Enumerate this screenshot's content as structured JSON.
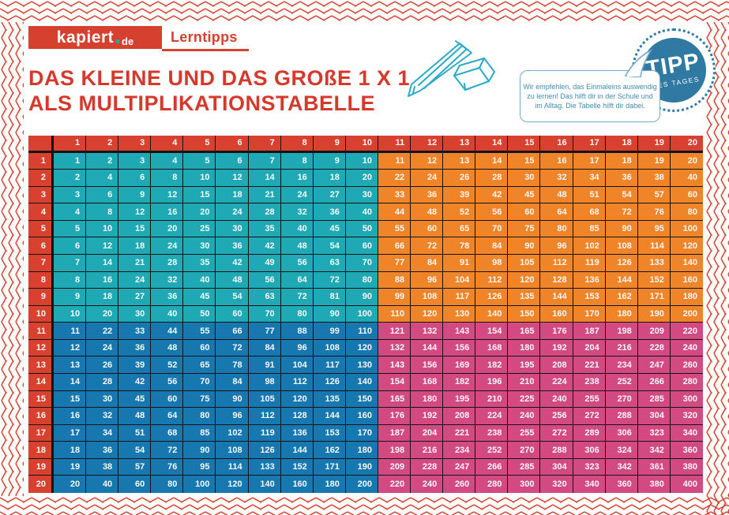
{
  "brand": {
    "name": "kapiert",
    "dot": "●",
    "tld": "de",
    "section": "Lerntipps"
  },
  "title": {
    "line1": "DAS KLEINE UND DAS GROßE 1 X 1",
    "line2": "ALS MULTIPLIKATIONSTABELLE"
  },
  "badge": {
    "title": "TIPP",
    "subtitle": "DES TAGES"
  },
  "bubble": {
    "line1": "Wir empfehlen, das Einmaleins auswendig",
    "line2": "zu lernen! Das hilft dir in der Schule und",
    "line3": "im Alltag. Die Tabelle hilft dir dabei."
  },
  "icons": {
    "pencil": "pencil-icon",
    "eraser": "eraser-icon",
    "border": "zigzag-border"
  },
  "colors": {
    "brand_red": "#d6402f",
    "header_red": "#d8402f",
    "quad_small": "#1fa9b5",
    "quad_cols_large": "#f08428",
    "quad_rows_large": "#1778b0",
    "quad_large": "#d34a82",
    "badge_blue": "#2f79a3",
    "doodle_teal": "#2baac6",
    "bubble_blue": "#3f8cb0",
    "cell_text": "#ffffff",
    "grid_line": "#141414"
  },
  "chart_data": {
    "type": "table",
    "title": "DAS KLEINE UND DAS GROßE 1 X 1 ALS MULTIPLIKATIONSTABELLE",
    "col_headers": [
      1,
      2,
      3,
      4,
      5,
      6,
      7,
      8,
      9,
      10,
      11,
      12,
      13,
      14,
      15,
      16,
      17,
      18,
      19,
      20
    ],
    "row_headers": [
      1,
      2,
      3,
      4,
      5,
      6,
      7,
      8,
      9,
      10,
      11,
      12,
      13,
      14,
      15,
      16,
      17,
      18,
      19,
      20
    ],
    "rows": [
      [
        1,
        2,
        3,
        4,
        5,
        6,
        7,
        8,
        9,
        10,
        11,
        12,
        13,
        14,
        15,
        16,
        17,
        18,
        19,
        20
      ],
      [
        2,
        4,
        6,
        8,
        10,
        12,
        14,
        16,
        18,
        20,
        22,
        24,
        26,
        28,
        30,
        32,
        34,
        36,
        38,
        40
      ],
      [
        3,
        6,
        9,
        12,
        15,
        18,
        21,
        24,
        27,
        30,
        33,
        36,
        39,
        42,
        45,
        48,
        51,
        54,
        57,
        60
      ],
      [
        4,
        8,
        12,
        16,
        20,
        24,
        28,
        32,
        36,
        40,
        44,
        48,
        52,
        56,
        60,
        64,
        68,
        72,
        76,
        80
      ],
      [
        5,
        10,
        15,
        20,
        25,
        30,
        35,
        40,
        45,
        50,
        55,
        60,
        65,
        70,
        75,
        80,
        85,
        90,
        95,
        100
      ],
      [
        6,
        12,
        18,
        24,
        30,
        36,
        42,
        48,
        54,
        60,
        66,
        72,
        78,
        84,
        90,
        96,
        102,
        108,
        114,
        120
      ],
      [
        7,
        14,
        21,
        28,
        35,
        42,
        49,
        56,
        63,
        70,
        77,
        84,
        91,
        98,
        105,
        112,
        119,
        126,
        133,
        140
      ],
      [
        8,
        16,
        24,
        32,
        40,
        48,
        56,
        64,
        72,
        80,
        88,
        96,
        104,
        112,
        120,
        128,
        136,
        144,
        152,
        160
      ],
      [
        9,
        18,
        27,
        36,
        45,
        54,
        63,
        72,
        81,
        90,
        99,
        108,
        117,
        126,
        135,
        144,
        153,
        162,
        171,
        180
      ],
      [
        10,
        20,
        30,
        40,
        50,
        60,
        70,
        80,
        90,
        100,
        110,
        120,
        130,
        140,
        150,
        160,
        170,
        180,
        190,
        200
      ],
      [
        11,
        22,
        33,
        44,
        55,
        66,
        77,
        88,
        99,
        110,
        121,
        132,
        143,
        154,
        165,
        176,
        187,
        198,
        209,
        220
      ],
      [
        12,
        24,
        36,
        48,
        60,
        72,
        84,
        96,
        108,
        120,
        132,
        144,
        156,
        168,
        180,
        192,
        204,
        216,
        228,
        240
      ],
      [
        13,
        26,
        39,
        52,
        65,
        78,
        91,
        104,
        117,
        130,
        143,
        156,
        169,
        182,
        195,
        208,
        221,
        234,
        247,
        260
      ],
      [
        14,
        28,
        42,
        56,
        70,
        84,
        98,
        112,
        126,
        140,
        154,
        168,
        182,
        196,
        210,
        224,
        238,
        252,
        266,
        280
      ],
      [
        15,
        30,
        45,
        60,
        75,
        90,
        105,
        120,
        135,
        150,
        165,
        180,
        195,
        210,
        225,
        240,
        255,
        270,
        285,
        300
      ],
      [
        16,
        32,
        48,
        64,
        80,
        96,
        112,
        128,
        144,
        160,
        176,
        192,
        208,
        224,
        240,
        256,
        272,
        288,
        304,
        320
      ],
      [
        17,
        34,
        51,
        68,
        85,
        102,
        119,
        136,
        153,
        170,
        187,
        204,
        221,
        238,
        255,
        272,
        289,
        306,
        323,
        340
      ],
      [
        18,
        36,
        54,
        72,
        90,
        108,
        126,
        144,
        162,
        180,
        198,
        216,
        234,
        252,
        270,
        288,
        306,
        324,
        342,
        360
      ],
      [
        19,
        38,
        57,
        76,
        95,
        114,
        133,
        152,
        171,
        190,
        209,
        228,
        247,
        266,
        285,
        304,
        323,
        342,
        361,
        380
      ],
      [
        20,
        40,
        60,
        80,
        100,
        120,
        140,
        160,
        180,
        200,
        220,
        240,
        260,
        280,
        300,
        320,
        340,
        360,
        380,
        400
      ]
    ],
    "quadrants": {
      "rows_1_10_cols_1_10": "teal",
      "rows_1_10_cols_11_20": "orange",
      "rows_11_20_cols_1_10": "blue",
      "rows_11_20_cols_11_20": "pink"
    }
  }
}
